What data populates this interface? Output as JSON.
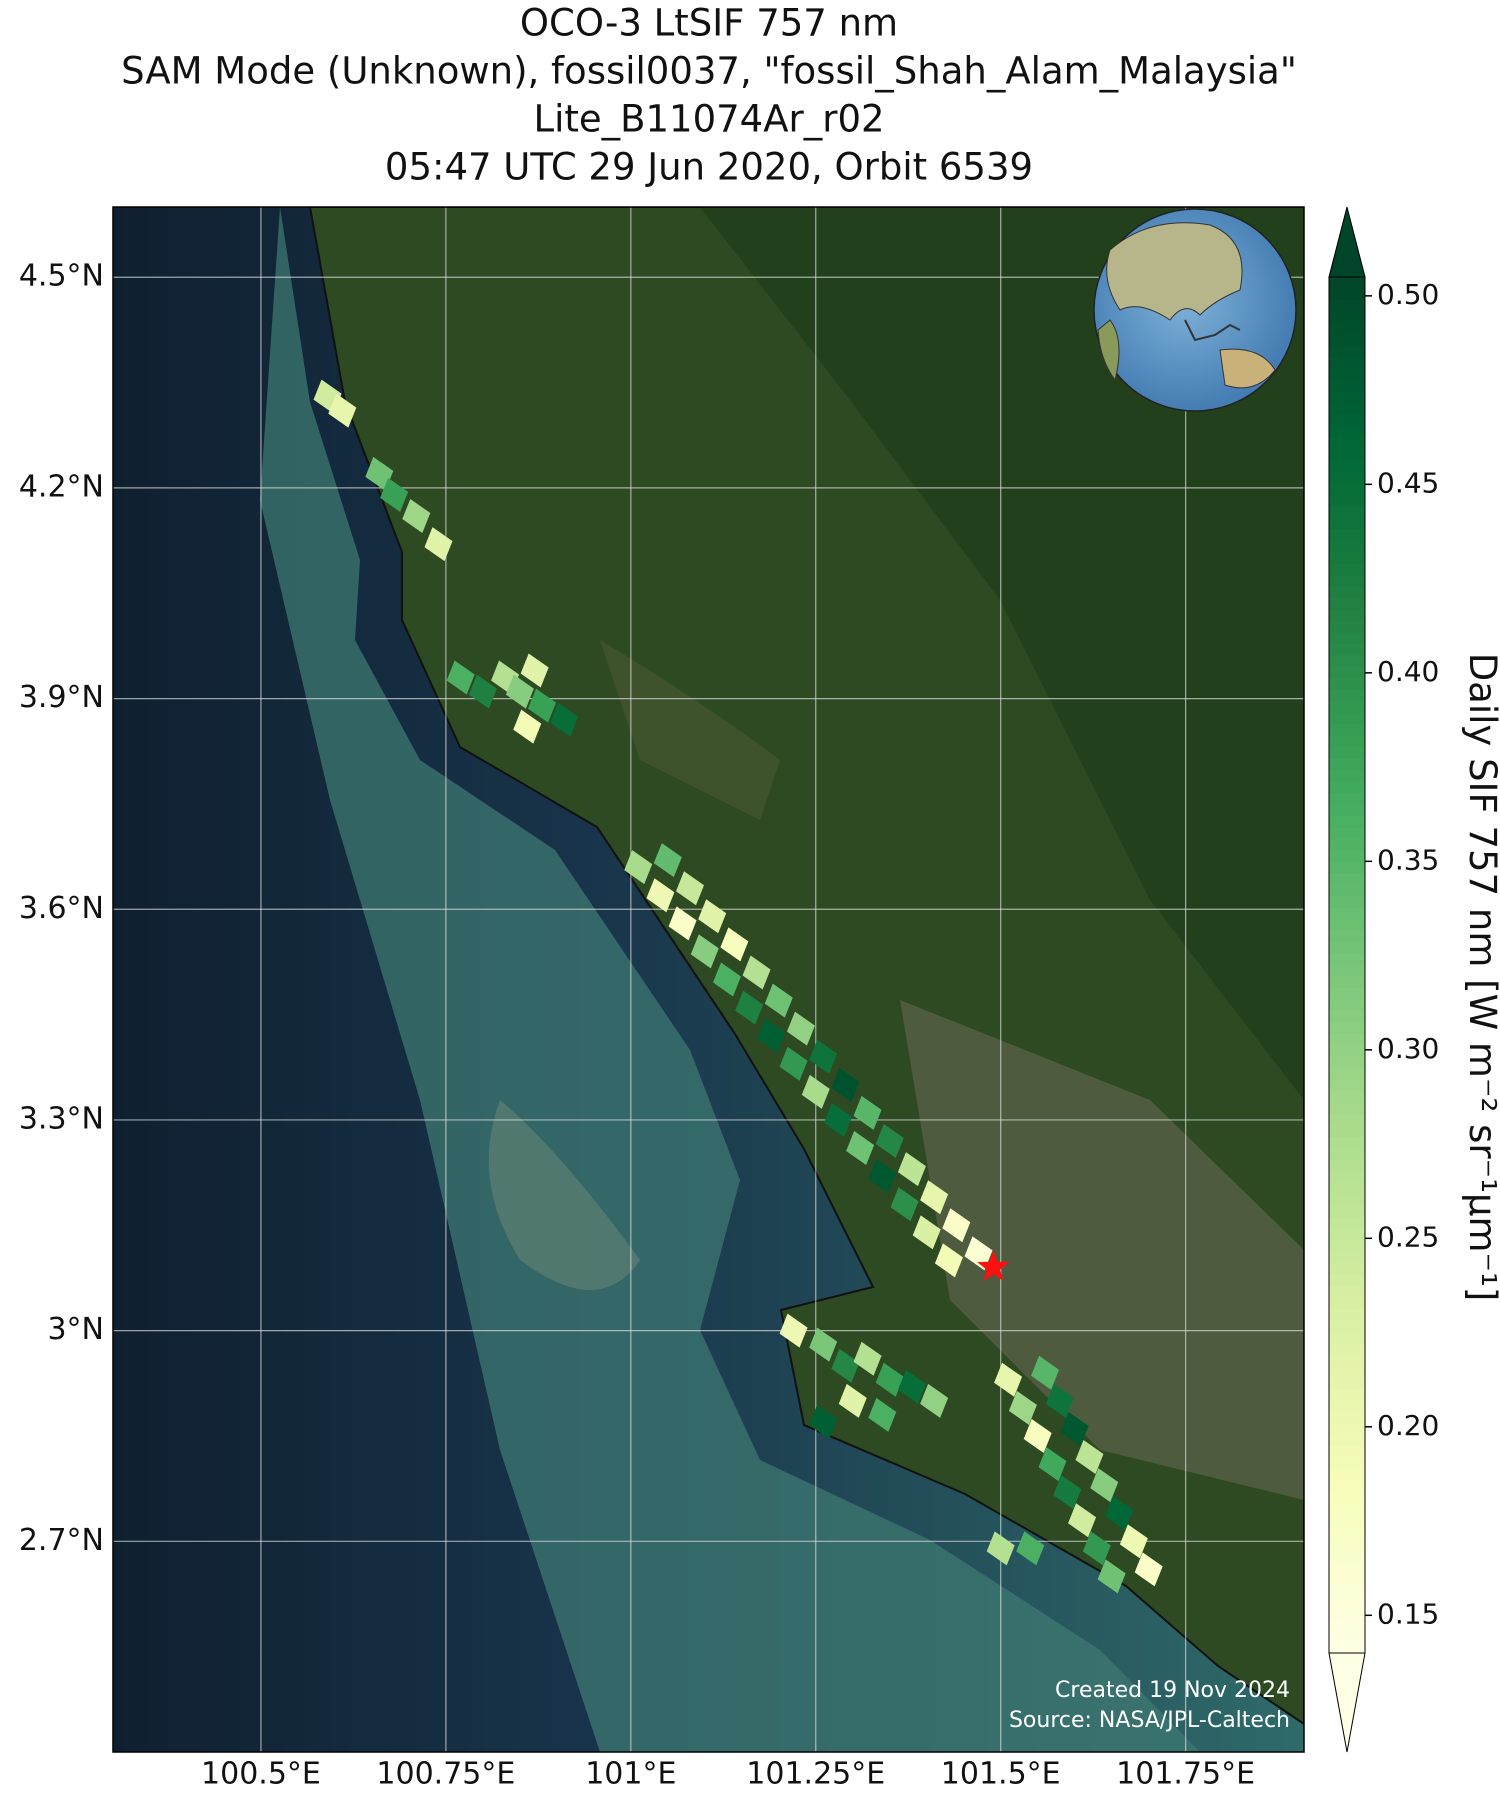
{
  "chart_data": {
    "type": "map-scatter",
    "title": [
      "OCO-3 LtSIF 757 nm",
      "SAM Mode (Unknown), fossil0037, \"fossil_Shah_Alam_Malaysia\"",
      "Lite_B11074Ar_r02",
      "05:47 UTC 29 Jun 2020, Orbit 6539"
    ],
    "xlim": [
      100.3,
      101.91
    ],
    "ylim": [
      2.4,
      4.6
    ],
    "xticks": [
      {
        "value": 100.5,
        "label": "100.5°E"
      },
      {
        "value": 100.75,
        "label": "100.75°E"
      },
      {
        "value": 101,
        "label": "101°E"
      },
      {
        "value": 101.25,
        "label": "101.25°E"
      },
      {
        "value": 101.5,
        "label": "101.5°E"
      },
      {
        "value": 101.75,
        "label": "101.75°E"
      }
    ],
    "yticks": [
      {
        "value": 2.7,
        "label": "2.7°N"
      },
      {
        "value": 3.0,
        "label": "3°N"
      },
      {
        "value": 3.3,
        "label": "3.3°N"
      },
      {
        "value": 3.6,
        "label": "3.6°N"
      },
      {
        "value": 3.9,
        "label": "3.9°N"
      },
      {
        "value": 4.2,
        "label": "4.2°N"
      },
      {
        "value": 4.5,
        "label": "4.5°N"
      }
    ],
    "grid": true,
    "colormap": "YlGn",
    "clim": [
      0.14,
      0.505
    ],
    "colorbar_label": "Daily SIF 757 nm [W m⁻² sr⁻¹μm⁻¹]",
    "colorbar_ticks": [
      0.15,
      {
        "value": 0.2,
        "label": "0.20"
      },
      0.25,
      {
        "value": 0.3,
        "label": "0.30"
      },
      0.35,
      {
        "value": 0.4,
        "label": "0.40"
      },
      0.45,
      {
        "value": 0.5,
        "label": "0.50"
      }
    ],
    "target": [
      101.49,
      3.09
    ],
    "annotations": [
      "Created 19 Nov 2024",
      "Source: NASA/JPL-Caltech"
    ],
    "x": [
      100.59,
      100.61,
      100.66,
      100.68,
      100.71,
      100.74,
      100.77,
      100.8,
      100.83,
      100.85,
      100.87,
      100.88,
      100.91,
      100.86,
      101.01,
      101.05,
      101.04,
      101.08,
      101.07,
      101.11,
      101.1,
      101.14,
      101.13,
      101.17,
      101.16,
      101.2,
      101.19,
      101.23,
      101.22,
      101.26,
      101.25,
      101.29,
      101.28,
      101.32,
      101.31,
      101.35,
      101.34,
      101.38,
      101.37,
      101.41,
      101.4,
      101.44,
      101.43,
      101.47,
      101.22,
      101.26,
      101.29,
      101.32,
      101.35,
      101.38,
      101.3,
      101.34,
      101.41,
      101.26,
      101.51,
      101.56,
      101.53,
      101.58,
      101.55,
      101.6,
      101.57,
      101.62,
      101.59,
      101.64,
      101.61,
      101.66,
      101.63,
      101.68,
      101.65,
      101.7,
      101.5,
      101.54
    ],
    "y": [
      4.33,
      4.31,
      4.22,
      4.19,
      4.16,
      4.12,
      3.93,
      3.91,
      3.93,
      3.91,
      3.94,
      3.89,
      3.87,
      3.86,
      3.66,
      3.67,
      3.62,
      3.63,
      3.58,
      3.59,
      3.54,
      3.55,
      3.5,
      3.51,
      3.46,
      3.47,
      3.42,
      3.43,
      3.38,
      3.39,
      3.34,
      3.35,
      3.3,
      3.31,
      3.26,
      3.27,
      3.22,
      3.23,
      3.18,
      3.19,
      3.14,
      3.15,
      3.1,
      3.11,
      3.0,
      2.98,
      2.95,
      2.96,
      2.93,
      2.92,
      2.9,
      2.88,
      2.9,
      2.87,
      2.93,
      2.94,
      2.89,
      2.9,
      2.85,
      2.86,
      2.81,
      2.82,
      2.77,
      2.78,
      2.73,
      2.74,
      2.69,
      2.7,
      2.65,
      2.66,
      2.69,
      2.69
    ],
    "values": [
      0.24,
      0.21,
      0.33,
      0.38,
      0.29,
      0.22,
      0.36,
      0.42,
      0.27,
      0.31,
      0.22,
      0.38,
      0.45,
      0.19,
      0.28,
      0.34,
      0.2,
      0.25,
      0.17,
      0.22,
      0.31,
      0.18,
      0.36,
      0.27,
      0.42,
      0.33,
      0.47,
      0.3,
      0.39,
      0.44,
      0.28,
      0.49,
      0.45,
      0.35,
      0.33,
      0.41,
      0.48,
      0.26,
      0.4,
      0.21,
      0.23,
      0.17,
      0.19,
      0.16,
      0.2,
      0.32,
      0.41,
      0.27,
      0.38,
      0.45,
      0.22,
      0.36,
      0.3,
      0.47,
      0.21,
      0.35,
      0.29,
      0.44,
      0.18,
      0.48,
      0.37,
      0.26,
      0.43,
      0.31,
      0.24,
      0.46,
      0.39,
      0.2,
      0.33,
      0.17,
      0.27,
      0.36
    ]
  }
}
